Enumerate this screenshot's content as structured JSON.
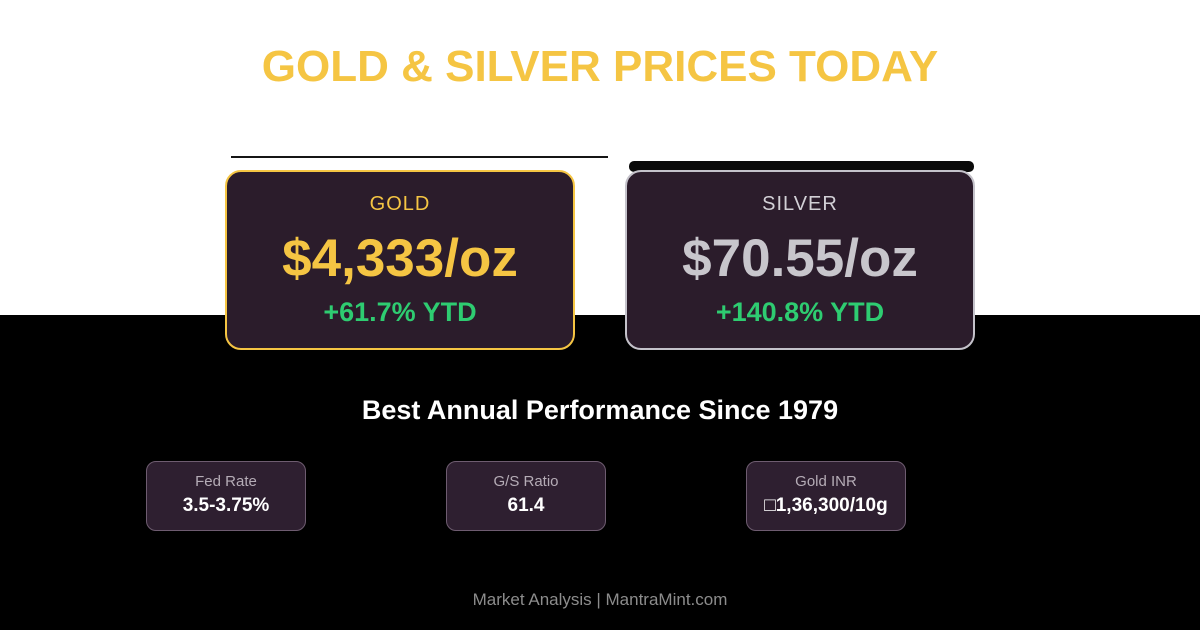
{
  "page": {
    "title": "GOLD & SILVER PRICES TODAY",
    "section_heading": "Best Annual Performance Since 1979",
    "footer": "Market Analysis | MantraMint.com"
  },
  "price_cards": [
    {
      "id": "gold",
      "label": "GOLD",
      "price": "$4,333/oz",
      "ytd": "+61.7% YTD"
    },
    {
      "id": "silver",
      "label": "SILVER",
      "price": "$70.55/oz",
      "ytd": "+140.8% YTD"
    }
  ],
  "stat_cards": [
    {
      "label": "Fed Rate",
      "value": "3.5-3.75%"
    },
    {
      "label": "G/S Ratio",
      "value": "61.4"
    },
    {
      "label": "Gold INR",
      "value": "□1,36,300/10g"
    }
  ],
  "colors": {
    "gold": "#F5C543",
    "silver_text": "#C8C6CC",
    "silver_border": "#C4C2CA",
    "green": "#2ECC71",
    "card_bg": "#2B1C2B",
    "stat_card_bg": "#2E1F30",
    "stat_card_border": "#6E5C70",
    "top_bg": "#FFFFFF",
    "bottom_bg": "#000000",
    "footer_text": "#8C8C8C",
    "label_gray": "#B5ACB6"
  }
}
